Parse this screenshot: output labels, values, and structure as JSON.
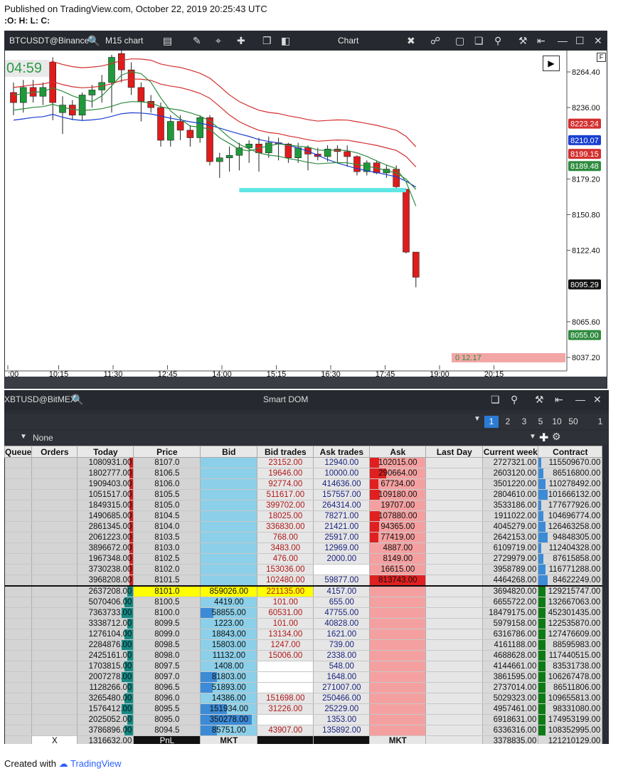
{
  "published": "Published on TradingView.com, October 22, 2019 20:25:43 UTC",
  "ohlc": ":O: H: L: C:",
  "chart": {
    "symbol": "BTCUSDT@Binance",
    "timeframe": "M15 chart",
    "title": "Chart",
    "timer": "04:59",
    "countdown": "0 12.17",
    "price_ticks": [
      "8264.40",
      "8236.00",
      "8179.20",
      "8150.80",
      "8122.40",
      "8065.60",
      "8037.20"
    ],
    "time_ticks": [
      ":00",
      "10:15",
      "11:30",
      "12:45",
      "14:00",
      "15:15",
      "16:30",
      "17:45",
      "19:00",
      "20:15"
    ],
    "price_tags": [
      {
        "label": "8223.24",
        "color": "#d32f2f"
      },
      {
        "label": "8210.07",
        "color": "#1a3fd1"
      },
      {
        "label": "8199.15",
        "color": "#d32f2f"
      },
      {
        "label": "8189.48",
        "color": "#2e8b3e"
      },
      {
        "label": "8095.29",
        "color": "#111111"
      },
      {
        "label": "8055.00",
        "color": "#2e8b3e"
      }
    ],
    "candles": [
      {
        "o": 8248,
        "h": 8256,
        "l": 8230,
        "c": 8240
      },
      {
        "o": 8240,
        "h": 8258,
        "l": 8232,
        "c": 8252
      },
      {
        "o": 8252,
        "h": 8258,
        "l": 8240,
        "c": 8245
      },
      {
        "o": 8245,
        "h": 8256,
        "l": 8238,
        "c": 8252
      },
      {
        "o": 8272,
        "h": 8276,
        "l": 8226,
        "c": 8240
      },
      {
        "o": 8232,
        "h": 8245,
        "l": 8215,
        "c": 8238
      },
      {
        "o": 8238,
        "h": 8242,
        "l": 8226,
        "c": 8230
      },
      {
        "o": 8230,
        "h": 8248,
        "l": 8226,
        "c": 8246
      },
      {
        "o": 8246,
        "h": 8254,
        "l": 8236,
        "c": 8250
      },
      {
        "o": 8250,
        "h": 8262,
        "l": 8240,
        "c": 8256
      },
      {
        "o": 8256,
        "h": 8278,
        "l": 8232,
        "c": 8276
      },
      {
        "o": 8279,
        "h": 8282,
        "l": 8256,
        "c": 8266
      },
      {
        "o": 8266,
        "h": 8272,
        "l": 8246,
        "c": 8252
      },
      {
        "o": 8252,
        "h": 8256,
        "l": 8225,
        "c": 8241
      },
      {
        "o": 8241,
        "h": 8246,
        "l": 8232,
        "c": 8236
      },
      {
        "o": 8236,
        "h": 8240,
        "l": 8205,
        "c": 8210
      },
      {
        "o": 8210,
        "h": 8230,
        "l": 8205,
        "c": 8225
      },
      {
        "o": 8225,
        "h": 8230,
        "l": 8210,
        "c": 8218
      },
      {
        "o": 8218,
        "h": 8222,
        "l": 8205,
        "c": 8212
      },
      {
        "o": 8212,
        "h": 8230,
        "l": 8208,
        "c": 8228
      },
      {
        "o": 8228,
        "h": 8230,
        "l": 8190,
        "c": 8193
      },
      {
        "o": 8193,
        "h": 8200,
        "l": 8180,
        "c": 8196
      },
      {
        "o": 8196,
        "h": 8205,
        "l": 8185,
        "c": 8198
      },
      {
        "o": 8198,
        "h": 8208,
        "l": 8186,
        "c": 8204
      },
      {
        "o": 8204,
        "h": 8210,
        "l": 8192,
        "c": 8207
      },
      {
        "o": 8207,
        "h": 8212,
        "l": 8185,
        "c": 8200
      },
      {
        "o": 8200,
        "h": 8213,
        "l": 8196,
        "c": 8208
      },
      {
        "o": 8208,
        "h": 8212,
        "l": 8194,
        "c": 8207
      },
      {
        "o": 8207,
        "h": 8208,
        "l": 8192,
        "c": 8196
      },
      {
        "o": 8196,
        "h": 8208,
        "l": 8192,
        "c": 8204
      },
      {
        "o": 8204,
        "h": 8206,
        "l": 8186,
        "c": 8199
      },
      {
        "o": 8199,
        "h": 8204,
        "l": 8194,
        "c": 8197
      },
      {
        "o": 8197,
        "h": 8206,
        "l": 8193,
        "c": 8203
      },
      {
        "o": 8203,
        "h": 8206,
        "l": 8192,
        "c": 8201
      },
      {
        "o": 8201,
        "h": 8206,
        "l": 8189,
        "c": 8197
      },
      {
        "o": 8197,
        "h": 8198,
        "l": 8182,
        "c": 8185
      },
      {
        "o": 8185,
        "h": 8194,
        "l": 8182,
        "c": 8192
      },
      {
        "o": 8192,
        "h": 8194,
        "l": 8183,
        "c": 8184
      },
      {
        "o": 8184,
        "h": 8190,
        "l": 8180,
        "c": 8187
      },
      {
        "o": 8187,
        "h": 8190,
        "l": 8170,
        "c": 8173
      },
      {
        "o": 8171,
        "h": 8171,
        "l": 8120,
        "c": 8121
      },
      {
        "o": 8121,
        "h": 8121,
        "l": 8093,
        "c": 8101
      }
    ]
  },
  "dom": {
    "title": "Smart DOM",
    "symbol": "XBTUSD@BitMEX",
    "pages": [
      "1",
      "2",
      "3",
      "5",
      "10",
      "50"
    ],
    "page_extra": "1",
    "filter": "None",
    "headers": [
      "Queue",
      "Orders",
      "Today",
      "Price",
      "Bid",
      "Bid trades",
      "Ask trades",
      "Ask",
      "Last Day",
      "Current week",
      "Contract"
    ],
    "rows": [
      {
        "today": "1080931.00",
        "price": "8107.0",
        "bid": "",
        "bt": "23152.00",
        "at": "12940.00",
        "ask": "102015.00",
        "cw": "2727321.00",
        "ct": "115509670.00",
        "side": "ask"
      },
      {
        "today": "1802777.00",
        "price": "8106.5",
        "bid": "",
        "bt": "19646.00",
        "at": "10000.00",
        "ask": "290664.00",
        "cw": "2603120.00",
        "ct": "86516800.00",
        "side": "ask"
      },
      {
        "today": "1909403.00",
        "price": "8106.0",
        "bid": "",
        "bt": "92774.00",
        "at": "414636.00",
        "ask": "67734.00",
        "cw": "3501220.00",
        "ct": "110278492.00",
        "side": "ask"
      },
      {
        "today": "1051517.00",
        "price": "8105.5",
        "bid": "",
        "bt": "511617.00",
        "at": "157557.00",
        "ask": "109180.00",
        "cw": "2804610.00",
        "ct": "101666132.00",
        "side": "ask"
      },
      {
        "today": "1849315.00",
        "price": "8105.0",
        "bid": "",
        "bt": "399702.00",
        "at": "264314.00",
        "ask": "19707.00",
        "cw": "3533186.00",
        "ct": "177677926.00",
        "side": "ask"
      },
      {
        "today": "1490685.00",
        "price": "8104.5",
        "bid": "",
        "bt": "18025.00",
        "at": "78271.00",
        "ask": "107880.00",
        "cw": "1911022.00",
        "ct": "104696774.00",
        "side": "ask"
      },
      {
        "today": "2861345.00",
        "price": "8104.0",
        "bid": "",
        "bt": "336830.00",
        "at": "21421.00",
        "ask": "94365.00",
        "cw": "4045279.00",
        "ct": "126463258.00",
        "side": "ask"
      },
      {
        "today": "2061223.00",
        "price": "8103.5",
        "bid": "",
        "bt": "768.00",
        "at": "25917.00",
        "ask": "77419.00",
        "cw": "2642153.00",
        "ct": "94848305.00",
        "side": "ask"
      },
      {
        "today": "3896672.00",
        "price": "8103.0",
        "bid": "",
        "bt": "3483.00",
        "at": "12969.00",
        "ask": "4887.00",
        "cw": "6109719.00",
        "ct": "112404328.00",
        "side": "ask"
      },
      {
        "today": "1967348.00",
        "price": "8102.5",
        "bid": "",
        "bt": "476.00",
        "at": "2000.00",
        "ask": "8149.00",
        "cw": "2729979.00",
        "ct": "87615858.00",
        "side": "ask"
      },
      {
        "today": "3730238.00",
        "price": "8102.0",
        "bid": "",
        "bt": "153036.00",
        "at": "",
        "ask": "16615.00",
        "cw": "3958789.00",
        "ct": "116771288.00",
        "side": "ask"
      },
      {
        "today": "3968208.00",
        "price": "8101.5",
        "bid": "",
        "bt": "102480.00",
        "at": "59877.00",
        "ask": "813743.00",
        "cw": "4464268.00",
        "ct": "84622249.00",
        "side": "ask"
      },
      {
        "today": "2637208.00",
        "price": "8101.0",
        "bid": "859026.00",
        "bt": "221135.00",
        "at": "4157.00",
        "ask": "",
        "cw": "3694820.00",
        "ct": "129215747.00",
        "side": "bid"
      },
      {
        "today": "5070406.00",
        "price": "8100.5",
        "bid": "4419.00",
        "bt": "101.00",
        "at": "655.00",
        "ask": "",
        "cw": "6655722.00",
        "ct": "132667063.00",
        "side": "bid"
      },
      {
        "today": "7363733.00",
        "price": "8100.0",
        "bid": "58855.00",
        "bt": "60531.00",
        "at": "47755.00",
        "ask": "",
        "cw": "18479175.00",
        "ct": "452301435.00",
        "side": "bid"
      },
      {
        "today": "3338712.00",
        "price": "8099.5",
        "bid": "1223.00",
        "bt": "101.00",
        "at": "40828.00",
        "ask": "",
        "cw": "5979158.00",
        "ct": "122535870.00",
        "side": "bid"
      },
      {
        "today": "1276104.00",
        "price": "8099.0",
        "bid": "18843.00",
        "bt": "13134.00",
        "at": "1621.00",
        "ask": "",
        "cw": "6316786.00",
        "ct": "127476609.00",
        "side": "bid"
      },
      {
        "today": "2284876.00",
        "price": "8098.5",
        "bid": "15803.00",
        "bt": "1247.00",
        "at": "739.00",
        "ask": "",
        "cw": "4161188.00",
        "ct": "88595983.00",
        "side": "bid"
      },
      {
        "today": "2425161.00",
        "price": "8098.0",
        "bid": "11132.00",
        "bt": "15006.00",
        "at": "2338.00",
        "ask": "",
        "cw": "4688628.00",
        "ct": "117440515.00",
        "side": "bid"
      },
      {
        "today": "1703815.00",
        "price": "8097.5",
        "bid": "1408.00",
        "bt": "",
        "at": "548.00",
        "ask": "",
        "cw": "4144661.00",
        "ct": "83531738.00",
        "side": "bid"
      },
      {
        "today": "2007278.00",
        "price": "8097.0",
        "bid": "81803.00",
        "bt": "",
        "at": "1648.00",
        "ask": "",
        "cw": "3861595.00",
        "ct": "106267478.00",
        "side": "bid"
      },
      {
        "today": "1128266.00",
        "price": "8096.5",
        "bid": "51893.00",
        "bt": "",
        "at": "271007.00",
        "ask": "",
        "cw": "2737014.00",
        "ct": "86511806.00",
        "side": "bid"
      },
      {
        "today": "3265480.00",
        "price": "8096.0",
        "bid": "14386.00",
        "bt": "151698.00",
        "at": "250466.00",
        "ask": "",
        "cw": "5029323.00",
        "ct": "109655813.00",
        "side": "bid"
      },
      {
        "today": "1576412.00",
        "price": "8095.5",
        "bid": "151934.00",
        "bt": "31226.00",
        "at": "25229.00",
        "ask": "",
        "cw": "4957461.00",
        "ct": "98331080.00",
        "side": "bid"
      },
      {
        "today": "2025052.00",
        "price": "8095.0",
        "bid": "350278.00",
        "bt": "",
        "at": "1353.00",
        "ask": "",
        "cw": "6918631.00",
        "ct": "174953199.00",
        "side": "bid"
      },
      {
        "today": "3786896.00",
        "price": "8094.5",
        "bid": "85751.00",
        "bt": "43907.00",
        "at": "135892.00",
        "ask": "",
        "cw": "6336316.00",
        "ct": "108352995.00",
        "side": "bid"
      }
    ],
    "footer": {
      "x": "X",
      "pnl": "PnL",
      "mkt_bid": "MKT",
      "mkt_ask": "MKT",
      "today": "1316632.00",
      "cw": "3378835.00",
      "ct": "121210129.00"
    }
  },
  "created_with": "Created with",
  "brand": "TradingView"
}
